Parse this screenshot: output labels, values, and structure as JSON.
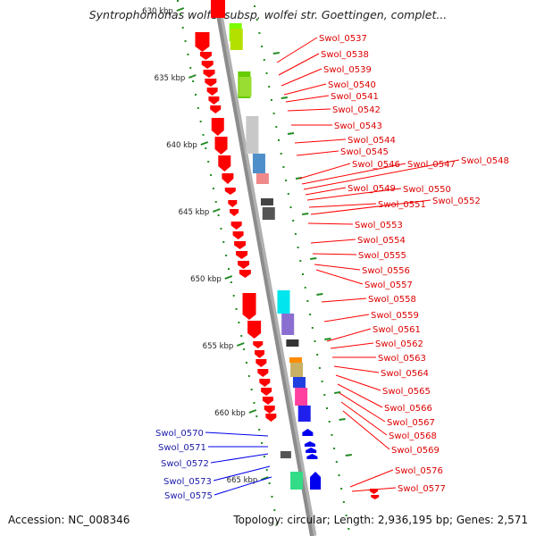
{
  "title": "Syntrophomonas wolfei subsp. wolfei str. Goettingen, complet...",
  "footer": {
    "accession": "Accession: NC_008346",
    "summary": "Topology: circular; Length: 2,936,195 bp; Genes: 2,571"
  },
  "colors": {
    "backbone": "#8c8c8c",
    "forward_gene": "#ff0000",
    "reverse_gene": "#0000ee",
    "forward_label": "#dd0000",
    "reverse_label": "#1a1aaa",
    "ticks": "#228b22"
  },
  "scale": {
    "unit": "kbp",
    "labels": [
      "630 kbp",
      "635 kbp",
      "640 kbp",
      "645 kbp",
      "650 kbp",
      "655 kbp",
      "660 kbp",
      "665 kbp"
    ]
  },
  "forward_genes": [
    "Swol_0537",
    "Swol_0538",
    "Swol_0539",
    "Swol_0540",
    "Swol_0541",
    "Swol_0542",
    "Swol_0543",
    "Swol_0544",
    "Swol_0545",
    "Swol_0546",
    "Swol_0547",
    "Swol_0548",
    "Swol_0549",
    "Swol_0550",
    "Swol_0551",
    "Swol_0552",
    "Swol_0553",
    "Swol_0554",
    "Swol_0555",
    "Swol_0556",
    "Swol_0557",
    "Swol_0558",
    "Swol_0559",
    "Swol_0561",
    "Swol_0562",
    "Swol_0563",
    "Swol_0564",
    "Swol_0565",
    "Swol_0566",
    "Swol_0567",
    "Swol_0568",
    "Swol_0569",
    "Swol_0576",
    "Swol_0577"
  ],
  "reverse_genes": [
    "Swol_0570",
    "Swol_0571",
    "Swol_0572",
    "Swol_0573",
    "Swol_0575"
  ]
}
